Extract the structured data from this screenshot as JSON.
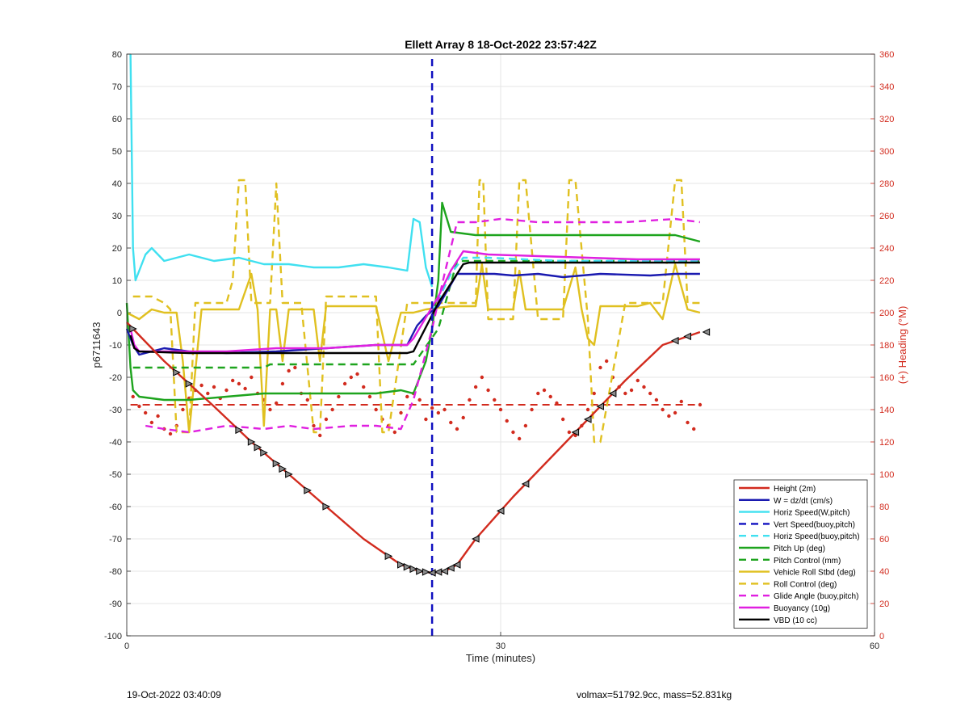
{
  "chart_data": {
    "type": "line",
    "title": "Ellett Array 8 18-Oct-2022 23:57:42Z",
    "xlabel": "Time (minutes)",
    "ylabel": "p6711643",
    "y2label": "(+) Heading (°M)",
    "xlim": [
      0,
      60
    ],
    "ylim": [
      -100,
      80
    ],
    "y2lim": [
      0,
      360
    ],
    "xticks": [
      0,
      30,
      60
    ],
    "yticks": [
      -100,
      -90,
      -80,
      -70,
      -60,
      -50,
      -40,
      -30,
      -20,
      -10,
      0,
      10,
      20,
      30,
      40,
      50,
      60,
      70,
      80
    ],
    "y2ticks": [
      0,
      20,
      40,
      60,
      80,
      100,
      120,
      140,
      160,
      180,
      200,
      220,
      240,
      260,
      280,
      300,
      320,
      340,
      360
    ],
    "grid": true,
    "legend_position": "bottom-right",
    "colors": {
      "height": "#d22b1e",
      "w": "#1a1ab0",
      "horiz": "#40e0f0",
      "vert_buoy": "#1010c0",
      "horiz_buoy": "#40e0f0",
      "pitch": "#1ea41e",
      "pitch_ctrl": "#1ea41e",
      "roll": "#e0c020",
      "roll_ctrl": "#e0c020",
      "glide": "#e020e0",
      "buoyancy": "#e020e0",
      "vbd": "#000000",
      "heading_axis": "#d22b1e"
    },
    "series": [
      {
        "name": "Height (2m)",
        "key": "height",
        "x": [
          0,
          1,
          3,
          5,
          7,
          10,
          13,
          16,
          19,
          22,
          23.5,
          24.5,
          25.5,
          26.5,
          28,
          31,
          34,
          37,
          40,
          43,
          46
        ],
        "y": [
          -3,
          -7,
          -15,
          -22,
          -29,
          -40,
          -50,
          -60,
          -70,
          -78,
          -80,
          -80.5,
          -80,
          -78,
          -70,
          -57,
          -45,
          -33,
          -21,
          -10,
          -6
        ]
      },
      {
        "name": "W = dz/dt (cm/s)",
        "key": "w",
        "x": [
          0,
          0.5,
          1,
          2,
          3,
          5,
          8,
          12,
          16,
          20,
          22.5,
          23.3,
          24,
          25,
          26.5,
          28,
          29.5,
          31,
          33,
          35,
          38,
          42,
          44,
          46
        ],
        "y": [
          -5,
          -10,
          -13,
          -12,
          -11,
          -12,
          -12.5,
          -12,
          -11,
          -10,
          -10,
          -4,
          -1,
          2,
          12,
          12,
          12,
          11.5,
          12,
          11,
          12,
          11.5,
          12,
          12
        ]
      },
      {
        "name": "Horiz Speed(W,pitch)",
        "key": "horiz",
        "x": [
          0.3,
          0.5,
          0.7,
          1.5,
          2,
          3,
          5,
          7,
          9,
          11,
          13,
          15,
          17,
          19,
          21,
          22.5,
          23,
          23.5,
          24,
          24.5
        ],
        "y": [
          80,
          20,
          10,
          18,
          20,
          16,
          18,
          16,
          17,
          15,
          15,
          14,
          14,
          15,
          14,
          13,
          29,
          28,
          14,
          8
        ]
      },
      {
        "name": "Vert Speed(buoy,pitch)",
        "key": "vert_buoy",
        "dashed": true,
        "x": [
          24.5,
          24.5
        ],
        "y": [
          -100,
          80
        ]
      },
      {
        "name": "Horiz Speed(buoy,pitch)",
        "key": "horiz_buoy",
        "dashed": true,
        "x": [
          24.5,
          26,
          27,
          29,
          35,
          40,
          44,
          46
        ],
        "y": [
          0,
          12,
          17,
          17,
          16,
          16,
          16,
          16
        ]
      },
      {
        "name": "Pitch Up (deg)",
        "key": "pitch",
        "x": [
          0,
          0.3,
          0.5,
          1,
          3,
          5,
          8,
          11,
          14,
          17,
          20,
          22,
          23,
          24,
          24.5,
          25,
          25.3,
          26,
          28,
          30,
          33,
          36,
          39,
          42,
          44,
          46
        ],
        "y": [
          3,
          -17,
          -24,
          -26,
          -27,
          -27,
          -26,
          -25,
          -25,
          -25,
          -25,
          -24,
          -25,
          -15,
          -5,
          10,
          34,
          25,
          24,
          24,
          24,
          24,
          24,
          24,
          24,
          22
        ]
      },
      {
        "name": "Pitch Control (mm)",
        "key": "pitch_ctrl",
        "dashed": true,
        "x": [
          0.5,
          11,
          11.5,
          23,
          25,
          26.5,
          46
        ],
        "y": [
          -17,
          -17,
          -16,
          -16,
          -5,
          16,
          16
        ]
      },
      {
        "name": "Vehicle Roll Stbd (deg)",
        "key": "roll",
        "x": [
          0,
          1,
          2,
          3,
          4,
          4.5,
          5,
          6,
          8,
          9,
          10,
          10.5,
          11,
          11.5,
          12,
          12.5,
          13,
          14,
          15,
          15.5,
          16,
          17,
          20,
          21,
          22,
          23,
          24,
          26,
          28,
          28.5,
          29,
          31,
          31.5,
          32,
          35,
          36,
          36.5,
          37,
          37.5,
          38,
          41,
          42,
          43,
          44,
          45,
          46
        ],
        "y": [
          0,
          -2,
          1,
          0,
          0,
          -15,
          -37,
          1,
          1,
          1,
          12,
          1,
          -35,
          1,
          1,
          -15,
          1,
          1,
          1,
          -15,
          2,
          2,
          2,
          -15,
          0,
          0,
          1,
          2,
          2,
          15,
          1,
          1,
          13,
          1,
          1,
          14,
          1,
          -8,
          -10,
          2,
          2,
          3,
          -2,
          15,
          1,
          0
        ]
      },
      {
        "name": "Roll Control (deg)",
        "key": "roll_ctrl",
        "dashed": true,
        "x": [
          0.5,
          2,
          3,
          3.5,
          4,
          5,
          5.5,
          8,
          8.5,
          9,
          9.5,
          10,
          11.5,
          12,
          12.5,
          13,
          14,
          15,
          15.5,
          16,
          18,
          20,
          20.5,
          21,
          22.5,
          23,
          23.5,
          26,
          28,
          28.3,
          28.6,
          29,
          30,
          31,
          31.5,
          32,
          33,
          35,
          35.5,
          36,
          37,
          37.5,
          38,
          40,
          43,
          44,
          44.5,
          45,
          46
        ],
        "y": [
          5,
          5,
          3,
          1,
          -37,
          -37,
          3,
          3,
          10,
          41,
          41,
          3,
          3,
          40,
          3,
          3,
          3,
          -37,
          -37,
          5,
          5,
          5,
          -37,
          -37,
          3,
          3,
          3,
          3,
          3,
          41,
          41,
          -2,
          -2,
          -2,
          41,
          41,
          -2,
          -2,
          41,
          41,
          -2,
          -40,
          -40,
          3,
          3,
          41,
          41,
          3,
          3
        ]
      },
      {
        "name": "Glide Angle (buoy,pitch)",
        "key": "glide",
        "dashed": true,
        "x": [
          1.5,
          3,
          5,
          8,
          11,
          13,
          15,
          18,
          20,
          22,
          23,
          24.5,
          25.5,
          26.5,
          28,
          30,
          33,
          36,
          40,
          44,
          46
        ],
        "y": [
          -35,
          -36,
          -37,
          -35,
          -36,
          -35,
          -36,
          -35,
          -35,
          -36,
          -27,
          -5,
          12,
          28,
          28,
          29,
          28,
          28,
          28,
          29,
          28
        ]
      },
      {
        "name": "Buoyancy (10g)",
        "key": "buoyancy",
        "x": [
          0.3,
          0.6,
          1,
          4,
          8,
          12,
          16,
          20,
          22.5,
          23,
          25,
          26,
          27,
          29,
          33,
          37,
          41,
          45,
          46
        ],
        "y": [
          -5,
          -10,
          -12,
          -12,
          -12,
          -11,
          -11,
          -10,
          -10,
          -8,
          5,
          13,
          19,
          18,
          17.5,
          17,
          16.5,
          16.5,
          16.5
        ]
      },
      {
        "name": "VBD (10 cc)",
        "key": "vbd",
        "x": [
          0.3,
          0.6,
          1,
          5,
          10,
          15,
          20,
          22.5,
          23,
          25,
          27,
          27.5,
          30,
          35,
          40,
          45,
          46
        ],
        "y": [
          -7,
          -11,
          -12,
          -12.5,
          -12.5,
          -12.5,
          -12.5,
          -12.5,
          -12,
          3,
          15,
          15.5,
          15.5,
          15.5,
          15.5,
          15.5,
          15.5
        ]
      }
    ],
    "heading_reference": {
      "axis": "right",
      "y2": 143
    },
    "heading_points": {
      "axis": "right",
      "x": [
        0.5,
        1,
        1.5,
        2,
        2.5,
        3,
        3.5,
        4,
        4.5,
        5,
        5.5,
        6,
        6.5,
        7,
        7.5,
        8,
        8.5,
        9,
        9.5,
        10,
        10.5,
        11,
        11.5,
        12,
        12.5,
        13,
        13.5,
        14,
        14.5,
        15,
        15.5,
        16,
        16.5,
        17,
        17.5,
        18,
        18.5,
        19,
        19.5,
        20,
        20.5,
        21,
        21.5,
        22,
        22.5,
        23,
        23.5,
        24,
        24.5,
        25,
        25.5,
        26,
        26.5,
        27,
        27.5,
        28,
        28.5,
        29,
        29.5,
        30,
        30.5,
        31,
        31.5,
        32,
        32.5,
        33,
        33.5,
        34,
        34.5,
        35,
        35.5,
        36,
        36.5,
        37,
        37.5,
        38,
        38.5,
        39,
        39.5,
        40,
        40.5,
        41,
        41.5,
        42,
        42.5,
        43,
        43.5,
        44,
        44.5,
        45,
        45.5,
        46
      ],
      "y2": [
        148,
        142,
        138,
        132,
        136,
        128,
        125,
        130,
        140,
        147,
        152,
        155,
        150,
        154,
        147,
        152,
        158,
        156,
        153,
        160,
        150,
        146,
        140,
        144,
        156,
        164,
        166,
        150,
        146,
        130,
        124,
        134,
        140,
        148,
        156,
        160,
        162,
        154,
        148,
        140,
        134,
        130,
        126,
        138,
        148,
        150,
        146,
        134,
        141,
        138,
        140,
        132,
        128,
        135,
        146,
        154,
        160,
        152,
        146,
        140,
        133,
        126,
        122,
        130,
        140,
        150,
        152,
        148,
        144,
        134,
        126,
        124,
        130,
        140,
        150,
        166,
        170,
        160,
        154,
        150,
        152,
        158,
        154,
        150,
        146,
        140,
        136,
        138,
        145,
        132,
        128,
        143,
        140,
        138,
        134,
        136
      ]
    }
  },
  "footer": {
    "left": "19-Oct-2022 03:40:09",
    "right": "volmax=51792.9cc, mass=52.831kg"
  }
}
